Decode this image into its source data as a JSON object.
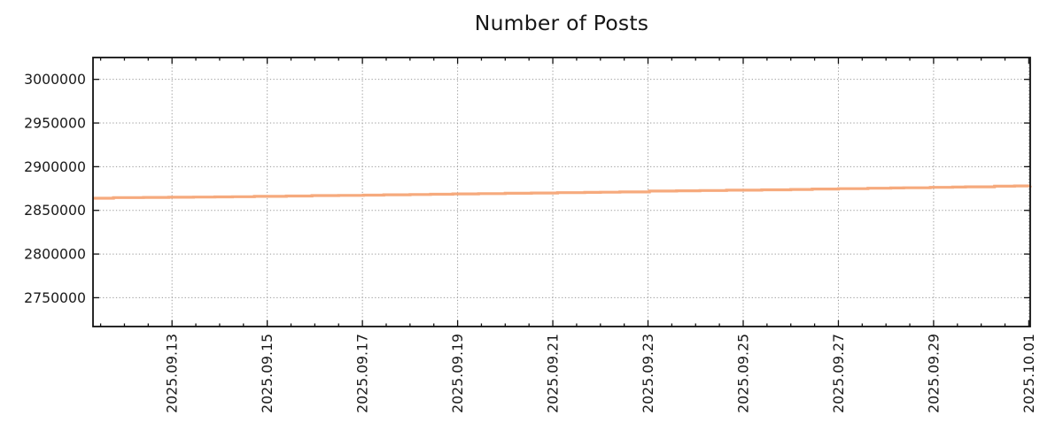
{
  "chart_data": {
    "type": "line",
    "title": "Number of Posts",
    "xlabel": "",
    "ylabel": "",
    "grid": true,
    "grid_style": "dotted",
    "legend": false,
    "background_color": "#ffffff",
    "axis_color": "#111111",
    "grid_color": "#9b9b9b",
    "text_color": "#1a1a1a",
    "x_unit": "days since 2025-09-13 00:00",
    "xlim_days": [
      -1.66,
      18.03
    ],
    "ylim": [
      2717000,
      3025000
    ],
    "y_ticks": [
      2750000,
      2800000,
      2850000,
      2900000,
      2950000,
      3000000
    ],
    "x_ticks": [
      {
        "d": 0,
        "label": "2025.09.13"
      },
      {
        "d": 2,
        "label": "2025.09.15"
      },
      {
        "d": 4,
        "label": "2025.09.17"
      },
      {
        "d": 6,
        "label": "2025.09.19"
      },
      {
        "d": 8,
        "label": "2025.09.21"
      },
      {
        "d": 10,
        "label": "2025.09.23"
      },
      {
        "d": 12,
        "label": "2025.09.25"
      },
      {
        "d": 14,
        "label": "2025.09.27"
      },
      {
        "d": 16,
        "label": "2025.09.29"
      },
      {
        "d": 18,
        "label": "2025.10.01"
      }
    ],
    "x_minor_step_days": 0.5,
    "series": [
      {
        "name": "Number of Posts",
        "color": "#f6aa7d",
        "line_width": 3.2,
        "interpolation": "step-after",
        "points": [
          [
            -1.66,
            2863900
          ],
          [
            -1.23,
            2864600
          ],
          [
            -0.6,
            2864800
          ],
          [
            -0.07,
            2865000
          ],
          [
            0.45,
            2865200
          ],
          [
            0.9,
            2865400
          ],
          [
            1.27,
            2865600
          ],
          [
            1.73,
            2866000
          ],
          [
            2.4,
            2866400
          ],
          [
            2.94,
            2866900
          ],
          [
            3.5,
            2867200
          ],
          [
            4.02,
            2867500
          ],
          [
            4.45,
            2867900
          ],
          [
            5.0,
            2868200
          ],
          [
            5.43,
            2868500
          ],
          [
            5.9,
            2868900
          ],
          [
            6.44,
            2869200
          ],
          [
            7.0,
            2869600
          ],
          [
            7.55,
            2869900
          ],
          [
            8.1,
            2870300
          ],
          [
            8.67,
            2870600
          ],
          [
            9.0,
            2870800
          ],
          [
            9.41,
            2871100
          ],
          [
            10.03,
            2872100
          ],
          [
            10.6,
            2872400
          ],
          [
            11.09,
            2872700
          ],
          [
            11.65,
            2873100
          ],
          [
            12.39,
            2873500
          ],
          [
            13.0,
            2873900
          ],
          [
            13.45,
            2874400
          ],
          [
            14.0,
            2874800
          ],
          [
            14.62,
            2875400
          ],
          [
            15.1,
            2875700
          ],
          [
            15.37,
            2875900
          ],
          [
            15.93,
            2876400
          ],
          [
            16.4,
            2876700
          ],
          [
            16.67,
            2877000
          ],
          [
            17.28,
            2877700
          ],
          [
            17.7,
            2878000
          ],
          [
            18.03,
            2878200
          ]
        ]
      }
    ]
  }
}
